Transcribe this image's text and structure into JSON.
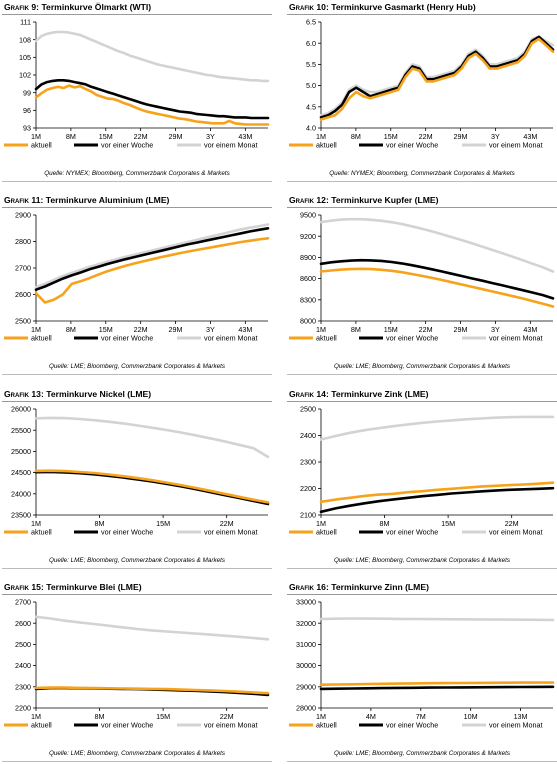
{
  "colors": {
    "aktuell": "#F7A21B",
    "woche": "#000000",
    "monat": "#D3D3D3"
  },
  "chart_data": [
    {
      "type": "line",
      "label_prefix": "Grafik 9:",
      "title": "Terminkurve Ölmarkt (WTI)",
      "source": "Quelle: NYMEX; Bloomberg, Commerzbank Corporates & Markets",
      "x_ticks": [
        "1M",
        "8M",
        "15M",
        "22M",
        "29M",
        "3Y",
        "43M"
      ],
      "ylim": [
        93,
        111
      ],
      "y_ticks": [
        93,
        96,
        99,
        102,
        105,
        108,
        111
      ],
      "series": [
        {
          "name": "aktuell",
          "values": [
            98.2,
            98.9,
            99.5,
            99.8,
            100.0,
            99.8,
            100.2,
            99.9,
            100.1,
            99.6,
            99.2,
            98.6,
            98.3,
            98.0,
            97.9,
            97.6,
            97.2,
            96.9,
            96.5,
            96.1,
            95.8,
            95.6,
            95.4,
            95.2,
            95.0,
            94.8,
            94.6,
            94.5,
            94.3,
            94.1,
            94.0,
            93.9,
            93.8,
            93.8,
            93.8,
            94.2,
            93.8,
            93.7,
            93.6,
            93.6,
            93.6,
            93.6,
            93.6
          ]
        },
        {
          "name": "vor einer Woche",
          "values": [
            99.6,
            100.4,
            100.8,
            101.0,
            101.1,
            101.1,
            101.0,
            100.8,
            100.6,
            100.4,
            100.0,
            99.7,
            99.4,
            99.1,
            98.8,
            98.5,
            98.2,
            97.9,
            97.6,
            97.3,
            97.0,
            96.8,
            96.6,
            96.4,
            96.2,
            96.0,
            95.8,
            95.7,
            95.6,
            95.4,
            95.3,
            95.2,
            95.1,
            95.0,
            95.0,
            94.9,
            94.8,
            94.8,
            94.8,
            94.7,
            94.7,
            94.7,
            94.7
          ]
        },
        {
          "name": "vor einem Monat",
          "values": [
            107.8,
            108.6,
            109.0,
            109.2,
            109.3,
            109.3,
            109.2,
            109.0,
            108.8,
            108.4,
            108.0,
            107.6,
            107.2,
            106.8,
            106.4,
            106.0,
            105.7,
            105.3,
            105.0,
            104.7,
            104.4,
            104.1,
            103.8,
            103.6,
            103.4,
            103.2,
            103.0,
            102.8,
            102.6,
            102.4,
            102.2,
            102.0,
            101.9,
            101.7,
            101.6,
            101.5,
            101.4,
            101.3,
            101.2,
            101.1,
            101.1,
            101.0,
            101.0
          ]
        }
      ]
    },
    {
      "type": "line",
      "label_prefix": "Grafik 10:",
      "title": "Terminkurve Gasmarkt (Henry Hub)",
      "source": "Quelle: NYMEX; Bloomberg, Commerzbank Corporates & Markets",
      "x_ticks": [
        "1M",
        "8M",
        "15M",
        "22M",
        "29M",
        "3Y",
        "43M"
      ],
      "ylim": [
        4.0,
        6.5
      ],
      "y_ticks": [
        "4.0",
        "4.5",
        "5.0",
        "5.5",
        "6.0",
        "6.5"
      ],
      "series": [
        {
          "name": "aktuell",
          "values": [
            4.2,
            4.25,
            4.3,
            4.45,
            4.7,
            4.85,
            4.75,
            4.7,
            4.75,
            4.8,
            4.85,
            4.9,
            5.2,
            5.4,
            5.35,
            5.1,
            5.1,
            5.15,
            5.2,
            5.25,
            5.4,
            5.65,
            5.75,
            5.6,
            5.4,
            5.4,
            5.45,
            5.5,
            5.55,
            5.7,
            6.0,
            6.1,
            5.95,
            5.8
          ]
        },
        {
          "name": "vor einer Woche",
          "values": [
            4.25,
            4.3,
            4.4,
            4.55,
            4.85,
            4.95,
            4.85,
            4.75,
            4.8,
            4.85,
            4.9,
            4.95,
            5.25,
            5.45,
            5.4,
            5.15,
            5.15,
            5.2,
            5.25,
            5.3,
            5.45,
            5.7,
            5.8,
            5.65,
            5.45,
            5.45,
            5.5,
            5.55,
            5.6,
            5.75,
            6.05,
            6.15,
            6.0,
            5.85
          ]
        },
        {
          "name": "vor einem Monat",
          "values": [
            4.3,
            4.35,
            4.45,
            4.6,
            4.9,
            5.0,
            4.9,
            4.85,
            4.85,
            4.9,
            4.95,
            5.0,
            5.3,
            5.5,
            5.45,
            5.2,
            5.2,
            5.25,
            5.3,
            5.35,
            5.5,
            5.75,
            5.85,
            5.7,
            5.5,
            5.5,
            5.55,
            5.6,
            5.65,
            5.8,
            6.1,
            6.15,
            6.05,
            5.95
          ]
        }
      ]
    },
    {
      "type": "line",
      "label_prefix": "Grafik 11:",
      "title": "Terminkurve Aluminium (LME)",
      "source": "Quelle: LME; Bloomberg, Commerzbank Corporates & Markets",
      "x_ticks": [
        "1M",
        "8M",
        "15M",
        "22M",
        "29M",
        "3Y",
        "43M"
      ],
      "ylim": [
        2500,
        2900
      ],
      "y_ticks": [
        2500,
        2600,
        2700,
        2800,
        2900
      ],
      "series": [
        {
          "name": "aktuell",
          "values": [
            2605,
            2570,
            2580,
            2600,
            2640,
            2650,
            2662,
            2675,
            2688,
            2698,
            2708,
            2717,
            2725,
            2733,
            2741,
            2748,
            2755,
            2762,
            2768,
            2774,
            2780,
            2786,
            2792,
            2798,
            2803,
            2808,
            2812
          ]
        },
        {
          "name": "vor einer Woche",
          "values": [
            2618,
            2630,
            2645,
            2660,
            2672,
            2683,
            2695,
            2705,
            2715,
            2724,
            2733,
            2741,
            2749,
            2757,
            2765,
            2773,
            2781,
            2789,
            2796,
            2803,
            2810,
            2817,
            2824,
            2831,
            2838,
            2844,
            2850
          ]
        },
        {
          "name": "vor einem Monat",
          "values": [
            2628,
            2640,
            2655,
            2670,
            2682,
            2693,
            2704,
            2714,
            2724,
            2733,
            2742,
            2750,
            2758,
            2766,
            2774,
            2782,
            2790,
            2798,
            2806,
            2814,
            2822,
            2830,
            2838,
            2846,
            2852,
            2858,
            2864
          ]
        }
      ]
    },
    {
      "type": "line",
      "label_prefix": "Grafik 12:",
      "title": "Terminkurve Kupfer (LME)",
      "source": "Quelle: LME; Bloomberg, Commerzbank Corporates & Markets",
      "x_ticks": [
        "1M",
        "8M",
        "15M",
        "22M",
        "29M",
        "3Y",
        "43M"
      ],
      "ylim": [
        8000,
        9500
      ],
      "y_ticks": [
        8000,
        8300,
        8600,
        8900,
        9200,
        9500
      ],
      "series": [
        {
          "name": "aktuell",
          "values": [
            8700,
            8715,
            8728,
            8735,
            8738,
            8735,
            8725,
            8710,
            8690,
            8665,
            8638,
            8610,
            8580,
            8548,
            8515,
            8482,
            8450,
            8418,
            8385,
            8352,
            8318,
            8282,
            8245,
            8205
          ]
        },
        {
          "name": "vor einer Woche",
          "values": [
            8810,
            8830,
            8845,
            8855,
            8860,
            8858,
            8850,
            8835,
            8815,
            8790,
            8762,
            8732,
            8700,
            8668,
            8635,
            8602,
            8570,
            8537,
            8504,
            8470,
            8436,
            8402,
            8366,
            8320
          ]
        },
        {
          "name": "vor einem Monat",
          "values": [
            9400,
            9420,
            9435,
            9440,
            9440,
            9432,
            9418,
            9398,
            9372,
            9340,
            9305,
            9268,
            9228,
            9186,
            9142,
            9098,
            9052,
            9005,
            8958,
            8910,
            8860,
            8810,
            8760,
            8700
          ]
        }
      ]
    },
    {
      "type": "line",
      "label_prefix": "Grafik 13:",
      "title": "Terminkurve Nickel (LME)",
      "source": "Quelle: LME; Bloomberg, Commerzbank Corporates & Markets",
      "x_ticks": [
        "1M",
        "8M",
        "15M",
        "22M"
      ],
      "ylim": [
        23500,
        26000
      ],
      "y_ticks": [
        23500,
        24000,
        24500,
        25000,
        25500,
        26000
      ],
      "series": [
        {
          "name": "aktuell",
          "values": [
            24540,
            24545,
            24535,
            24515,
            24490,
            24455,
            24415,
            24370,
            24320,
            24265,
            24205,
            24140,
            24070,
            24000,
            23930,
            23862,
            23798
          ]
        },
        {
          "name": "vor einer Woche",
          "values": [
            24510,
            24515,
            24505,
            24485,
            24460,
            24425,
            24385,
            24340,
            24290,
            24235,
            24175,
            24110,
            24040,
            23970,
            23900,
            23830,
            23760
          ]
        },
        {
          "name": "vor einem Monat",
          "values": [
            25780,
            25790,
            25785,
            25765,
            25735,
            25700,
            25660,
            25612,
            25560,
            25505,
            25445,
            25380,
            25310,
            25235,
            25155,
            25075,
            24870
          ]
        }
      ]
    },
    {
      "type": "line",
      "label_prefix": "Grafik 14:",
      "title": "Terminkurve Zink (LME)",
      "source": "Quelle: LME; Bloomberg, Commerzbank Corporates & Markets",
      "x_ticks": [
        "1M",
        "8M",
        "15M",
        "22M"
      ],
      "ylim": [
        2100,
        2500
      ],
      "y_ticks": [
        2100,
        2200,
        2300,
        2400,
        2500
      ],
      "series": [
        {
          "name": "aktuell",
          "values": [
            2150,
            2158,
            2165,
            2172,
            2177,
            2180,
            2186,
            2190,
            2195,
            2199,
            2203,
            2207,
            2210,
            2213,
            2215,
            2218,
            2222
          ]
        },
        {
          "name": "vor einer Woche",
          "values": [
            2112,
            2125,
            2135,
            2144,
            2152,
            2159,
            2165,
            2171,
            2176,
            2181,
            2185,
            2189,
            2192,
            2195,
            2197,
            2199,
            2201
          ]
        },
        {
          "name": "vor einem Monat",
          "values": [
            2385,
            2398,
            2410,
            2420,
            2428,
            2435,
            2442,
            2448,
            2453,
            2457,
            2461,
            2464,
            2467,
            2469,
            2470,
            2470,
            2470
          ]
        }
      ]
    },
    {
      "type": "line",
      "label_prefix": "Grafik 15:",
      "title": "Terminkurve Blei (LME)",
      "source": "Quelle: LME; Bloomberg, Commerzbank Corporates & Markets",
      "x_ticks": [
        "1M",
        "8M",
        "15M",
        "22M"
      ],
      "ylim": [
        2200,
        2700
      ],
      "y_ticks": [
        2200,
        2300,
        2400,
        2500,
        2600,
        2700
      ],
      "series": [
        {
          "name": "aktuell",
          "values": [
            2295,
            2296,
            2296,
            2295,
            2294,
            2293,
            2292,
            2291,
            2290,
            2289,
            2287,
            2285,
            2283,
            2280,
            2277,
            2273,
            2270
          ]
        },
        {
          "name": "vor einer Woche",
          "values": [
            2290,
            2294,
            2294,
            2293,
            2292,
            2291,
            2290,
            2289,
            2287,
            2285,
            2283,
            2281,
            2278,
            2275,
            2271,
            2267,
            2262
          ]
        },
        {
          "name": "vor einem Monat",
          "values": [
            2630,
            2622,
            2612,
            2604,
            2596,
            2588,
            2580,
            2572,
            2566,
            2561,
            2556,
            2551,
            2546,
            2541,
            2536,
            2530,
            2524
          ]
        }
      ]
    },
    {
      "type": "line",
      "label_prefix": "Grafik 16:",
      "title": "Terminkurve Zinn (LME)",
      "source": "Quelle: LME; Bloomberg, Commerzbank Corporates & Markets",
      "x_ticks": [
        "1M",
        "4M",
        "7M",
        "10M",
        "13M"
      ],
      "ylim": [
        28000,
        33000
      ],
      "y_ticks": [
        28000,
        29000,
        30000,
        31000,
        32000,
        33000
      ],
      "series": [
        {
          "name": "aktuell",
          "values": [
            29100,
            29110,
            29120,
            29130,
            29140,
            29150,
            29160,
            29170,
            29175,
            29180,
            29185,
            29190,
            29195,
            29200,
            29200,
            29200
          ]
        },
        {
          "name": "vor einer Woche",
          "values": [
            28900,
            28910,
            28920,
            28930,
            28940,
            28950,
            28955,
            28960,
            28965,
            28970,
            28975,
            28980,
            28985,
            28990,
            28995,
            29000
          ]
        },
        {
          "name": "vor einem Monat",
          "values": [
            32200,
            32210,
            32220,
            32215,
            32210,
            32205,
            32200,
            32195,
            32190,
            32185,
            32180,
            32175,
            32170,
            32165,
            32160,
            32150
          ]
        }
      ]
    }
  ]
}
